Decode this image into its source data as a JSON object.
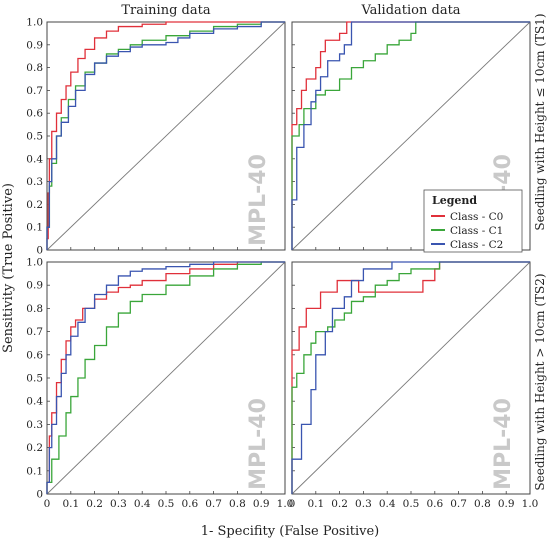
{
  "figure": {
    "column_titles": [
      "Training data",
      "Validation data"
    ],
    "row_titles": [
      "Seedling with Height ≤ 10cm (TS1)",
      "Seedling with Height > 10cm (TS2)"
    ],
    "xlabel": "1- Specifity (False Positive)",
    "ylabel": "Sensitivity (True Positive)",
    "watermark": "MPL-40",
    "legend": {
      "title": "Legend",
      "entries": [
        {
          "label": "Class - C0",
          "color": "#e0303a"
        },
        {
          "label": "Class - C1",
          "color": "#3aa63a"
        },
        {
          "label": "Class - C2",
          "color": "#3a55b0"
        }
      ]
    },
    "colors": {
      "C0": "#e0303a",
      "C1": "#3aa63a",
      "C2": "#3a55b0",
      "diagonal": "#7a7a7a",
      "watermark": "#c9c9c9"
    }
  },
  "chart_data": [
    {
      "type": "line",
      "panel": "Training data / TS1",
      "xlim": [
        0,
        1
      ],
      "ylim": [
        0,
        1
      ],
      "x_ticks": [
        "0",
        "0.1",
        "0.2",
        "0.3",
        "0.4",
        "0.5",
        "0.6",
        "0.7",
        "0.8",
        "0.9",
        "1.0"
      ],
      "y_ticks": [
        "0",
        "0.1",
        "0.2",
        "0.3",
        "0.4",
        "0.5",
        "0.6",
        "0.7",
        "0.8",
        "0.9",
        "1.0"
      ],
      "series": [
        {
          "name": "Class - C0",
          "points": [
            [
              0,
              0
            ],
            [
              0,
              0.05
            ],
            [
              0.005,
              0.25
            ],
            [
              0.01,
              0.4
            ],
            [
              0.02,
              0.52
            ],
            [
              0.04,
              0.6
            ],
            [
              0.06,
              0.66
            ],
            [
              0.08,
              0.72
            ],
            [
              0.1,
              0.78
            ],
            [
              0.13,
              0.84
            ],
            [
              0.16,
              0.88
            ],
            [
              0.2,
              0.93
            ],
            [
              0.25,
              0.96
            ],
            [
              0.3,
              0.98
            ],
            [
              0.4,
              0.99
            ],
            [
              0.5,
              1.0
            ],
            [
              1,
              1
            ]
          ]
        },
        {
          "name": "Class - C1",
          "points": [
            [
              0,
              0
            ],
            [
              0,
              0.1
            ],
            [
              0.01,
              0.28
            ],
            [
              0.02,
              0.38
            ],
            [
              0.04,
              0.5
            ],
            [
              0.06,
              0.58
            ],
            [
              0.09,
              0.66
            ],
            [
              0.12,
              0.72
            ],
            [
              0.16,
              0.78
            ],
            [
              0.2,
              0.82
            ],
            [
              0.25,
              0.86
            ],
            [
              0.3,
              0.88
            ],
            [
              0.35,
              0.9
            ],
            [
              0.4,
              0.92
            ],
            [
              0.5,
              0.94
            ],
            [
              0.6,
              0.96
            ],
            [
              0.7,
              0.98
            ],
            [
              0.8,
              0.99
            ],
            [
              0.9,
              1.0
            ],
            [
              1,
              1
            ]
          ]
        },
        {
          "name": "Class - C2",
          "points": [
            [
              0,
              0
            ],
            [
              0,
              0.1
            ],
            [
              0.01,
              0.3
            ],
            [
              0.02,
              0.4
            ],
            [
              0.04,
              0.5
            ],
            [
              0.06,
              0.56
            ],
            [
              0.09,
              0.63
            ],
            [
              0.12,
              0.7
            ],
            [
              0.16,
              0.77
            ],
            [
              0.2,
              0.82
            ],
            [
              0.25,
              0.85
            ],
            [
              0.3,
              0.87
            ],
            [
              0.35,
              0.89
            ],
            [
              0.4,
              0.9
            ],
            [
              0.5,
              0.91
            ],
            [
              0.55,
              0.93
            ],
            [
              0.6,
              0.95
            ],
            [
              0.7,
              0.97
            ],
            [
              0.8,
              0.98
            ],
            [
              0.9,
              1.0
            ],
            [
              1,
              1
            ]
          ]
        }
      ]
    },
    {
      "type": "line",
      "panel": "Validation data / TS1",
      "xlim": [
        0,
        1
      ],
      "ylim": [
        0,
        1
      ],
      "x_ticks": [
        "0",
        "0.1",
        "0.2",
        "0.3",
        "0.4",
        "0.5",
        "0.6",
        "0.7",
        "0.8",
        "0.9",
        "1.0"
      ],
      "y_ticks": [
        "0",
        "0.1",
        "0.2",
        "0.3",
        "0.4",
        "0.5",
        "0.6",
        "0.7",
        "0.8",
        "0.9",
        "1.0"
      ],
      "series": [
        {
          "name": "Class - C0",
          "points": [
            [
              0,
              0
            ],
            [
              0,
              0.55
            ],
            [
              0.02,
              0.62
            ],
            [
              0.04,
              0.7
            ],
            [
              0.06,
              0.75
            ],
            [
              0.1,
              0.8
            ],
            [
              0.12,
              0.87
            ],
            [
              0.14,
              0.87
            ],
            [
              0.14,
              0.92
            ],
            [
              0.2,
              0.92
            ],
            [
              0.2,
              0.95
            ],
            [
              0.23,
              0.95
            ],
            [
              0.23,
              1.0
            ],
            [
              1,
              1
            ]
          ]
        },
        {
          "name": "Class - C1",
          "points": [
            [
              0,
              0
            ],
            [
              0,
              0.5
            ],
            [
              0.03,
              0.55
            ],
            [
              0.05,
              0.62
            ],
            [
              0.08,
              0.62
            ],
            [
              0.1,
              0.68
            ],
            [
              0.14,
              0.7
            ],
            [
              0.2,
              0.75
            ],
            [
              0.25,
              0.8
            ],
            [
              0.3,
              0.83
            ],
            [
              0.35,
              0.86
            ],
            [
              0.4,
              0.86
            ],
            [
              0.4,
              0.9
            ],
            [
              0.45,
              0.92
            ],
            [
              0.5,
              0.95
            ],
            [
              0.52,
              1.0
            ],
            [
              1,
              1
            ]
          ]
        },
        {
          "name": "Class - C2",
          "points": [
            [
              0,
              0
            ],
            [
              0,
              0.22
            ],
            [
              0.02,
              0.35
            ],
            [
              0.02,
              0.45
            ],
            [
              0.05,
              0.55
            ],
            [
              0.08,
              0.65
            ],
            [
              0.1,
              0.7
            ],
            [
              0.12,
              0.76
            ],
            [
              0.15,
              0.83
            ],
            [
              0.2,
              0.86
            ],
            [
              0.22,
              0.9
            ],
            [
              0.25,
              0.95
            ],
            [
              0.25,
              1.0
            ],
            [
              1,
              1
            ]
          ]
        }
      ]
    },
    {
      "type": "line",
      "panel": "Training data / TS2",
      "xlim": [
        0,
        1
      ],
      "ylim": [
        0,
        1
      ],
      "x_ticks": [
        "0",
        "0.1",
        "0.2",
        "0.3",
        "0.4",
        "0.5",
        "0.6",
        "0.7",
        "0.8",
        "0.9",
        "1.0"
      ],
      "y_ticks": [
        "0",
        "0.1",
        "0.2",
        "0.3",
        "0.4",
        "0.5",
        "0.6",
        "0.7",
        "0.8",
        "0.9",
        "1.0"
      ],
      "series": [
        {
          "name": "Class - C0",
          "points": [
            [
              0,
              0
            ],
            [
              0,
              0.05
            ],
            [
              0.01,
              0.25
            ],
            [
              0.02,
              0.35
            ],
            [
              0.04,
              0.48
            ],
            [
              0.06,
              0.58
            ],
            [
              0.08,
              0.66
            ],
            [
              0.1,
              0.72
            ],
            [
              0.12,
              0.75
            ],
            [
              0.15,
              0.8
            ],
            [
              0.2,
              0.84
            ],
            [
              0.25,
              0.87
            ],
            [
              0.3,
              0.89
            ],
            [
              0.35,
              0.9
            ],
            [
              0.4,
              0.92
            ],
            [
              0.5,
              0.95
            ],
            [
              0.6,
              0.97
            ],
            [
              0.7,
              0.99
            ],
            [
              0.8,
              1.0
            ],
            [
              1,
              1
            ]
          ]
        },
        {
          "name": "Class - C1",
          "points": [
            [
              0,
              0
            ],
            [
              0,
              0.05
            ],
            [
              0.02,
              0.15
            ],
            [
              0.05,
              0.25
            ],
            [
              0.08,
              0.35
            ],
            [
              0.1,
              0.42
            ],
            [
              0.13,
              0.5
            ],
            [
              0.16,
              0.58
            ],
            [
              0.2,
              0.64
            ],
            [
              0.25,
              0.72
            ],
            [
              0.3,
              0.78
            ],
            [
              0.35,
              0.83
            ],
            [
              0.4,
              0.86
            ],
            [
              0.5,
              0.9
            ],
            [
              0.6,
              0.94
            ],
            [
              0.7,
              0.97
            ],
            [
              0.8,
              0.99
            ],
            [
              0.9,
              1.0
            ],
            [
              1,
              1
            ]
          ]
        },
        {
          "name": "Class - C2",
          "points": [
            [
              0,
              0
            ],
            [
              0,
              0.05
            ],
            [
              0.01,
              0.2
            ],
            [
              0.02,
              0.3
            ],
            [
              0.04,
              0.42
            ],
            [
              0.06,
              0.52
            ],
            [
              0.08,
              0.6
            ],
            [
              0.1,
              0.68
            ],
            [
              0.13,
              0.74
            ],
            [
              0.16,
              0.8
            ],
            [
              0.2,
              0.86
            ],
            [
              0.25,
              0.9
            ],
            [
              0.3,
              0.94
            ],
            [
              0.35,
              0.96
            ],
            [
              0.4,
              0.97
            ],
            [
              0.5,
              0.98
            ],
            [
              0.6,
              0.99
            ],
            [
              0.7,
              1.0
            ],
            [
              1,
              1
            ]
          ]
        }
      ]
    },
    {
      "type": "line",
      "panel": "Validation data / TS2",
      "xlim": [
        0,
        1
      ],
      "ylim": [
        0,
        1
      ],
      "x_ticks": [
        "0",
        "0.1",
        "0.2",
        "0.3",
        "0.4",
        "0.5",
        "0.6",
        "0.7",
        "0.8",
        "0.9",
        "1.0"
      ],
      "y_ticks": [
        "0",
        "0.1",
        "0.2",
        "0.3",
        "0.4",
        "0.5",
        "0.6",
        "0.7",
        "0.8",
        "0.9",
        "1.0"
      ],
      "series": [
        {
          "name": "Class - C0",
          "points": [
            [
              0,
              0
            ],
            [
              0,
              0.62
            ],
            [
              0.03,
              0.62
            ],
            [
              0.03,
              0.72
            ],
            [
              0.06,
              0.72
            ],
            [
              0.06,
              0.8
            ],
            [
              0.12,
              0.8
            ],
            [
              0.12,
              0.87
            ],
            [
              0.19,
              0.87
            ],
            [
              0.19,
              0.92
            ],
            [
              0.28,
              0.92
            ],
            [
              0.28,
              0.87
            ],
            [
              0.55,
              0.87
            ],
            [
              0.55,
              0.92
            ],
            [
              0.6,
              0.92
            ],
            [
              0.6,
              0.97
            ],
            [
              0.62,
              0.97
            ],
            [
              0.62,
              1.0
            ],
            [
              1,
              1
            ]
          ]
        },
        {
          "name": "Class - C1",
          "points": [
            [
              0,
              0
            ],
            [
              0,
              0.46
            ],
            [
              0.02,
              0.46
            ],
            [
              0.02,
              0.52
            ],
            [
              0.05,
              0.6
            ],
            [
              0.08,
              0.65
            ],
            [
              0.1,
              0.7
            ],
            [
              0.15,
              0.72
            ],
            [
              0.18,
              0.75
            ],
            [
              0.22,
              0.78
            ],
            [
              0.25,
              0.83
            ],
            [
              0.3,
              0.85
            ],
            [
              0.35,
              0.9
            ],
            [
              0.4,
              0.92
            ],
            [
              0.45,
              0.95
            ],
            [
              0.5,
              0.97
            ],
            [
              0.62,
              0.97
            ],
            [
              0.62,
              1.0
            ],
            [
              1,
              1
            ]
          ]
        },
        {
          "name": "Class - C2",
          "points": [
            [
              0,
              0
            ],
            [
              0,
              0.15
            ],
            [
              0.04,
              0.15
            ],
            [
              0.04,
              0.3
            ],
            [
              0.08,
              0.3
            ],
            [
              0.08,
              0.45
            ],
            [
              0.1,
              0.45
            ],
            [
              0.1,
              0.6
            ],
            [
              0.14,
              0.6
            ],
            [
              0.14,
              0.7
            ],
            [
              0.17,
              0.7
            ],
            [
              0.17,
              0.8
            ],
            [
              0.22,
              0.8
            ],
            [
              0.22,
              0.85
            ],
            [
              0.25,
              0.85
            ],
            [
              0.25,
              0.92
            ],
            [
              0.3,
              0.92
            ],
            [
              0.3,
              0.97
            ],
            [
              0.42,
              0.97
            ],
            [
              0.42,
              1.0
            ],
            [
              1,
              1
            ]
          ]
        }
      ]
    }
  ]
}
